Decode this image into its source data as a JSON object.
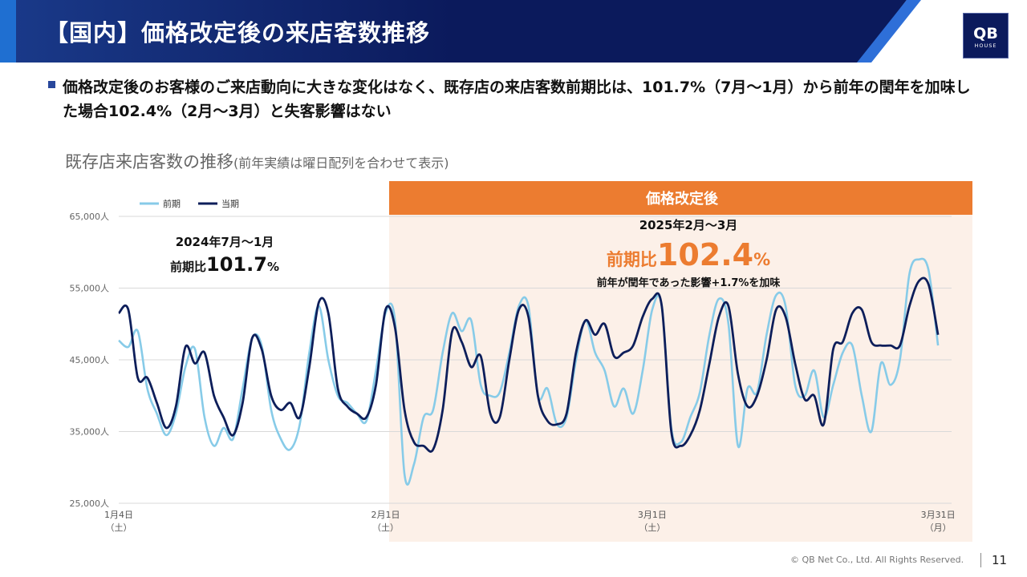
{
  "header": {
    "title": "【国内】価格改定後の来店客数推移",
    "logo_top": "QB",
    "logo_bottom": "HOUSE"
  },
  "summary": "価格改定後のお客様のご来店動向に大きな変化はなく、既存店の来店客数前期比は、101.7%（7月～1月）から前年の閏年を加味した場合102.4%（2月～3月）と失客影響はない",
  "chart_heading": {
    "main": "既存店来店客数の推移",
    "note": "(前年実績は曜日配列を合わせて表示)"
  },
  "chart_data": {
    "type": "line",
    "legend": [
      "前期",
      "当期"
    ],
    "legend_position": "top-left",
    "ylim": [
      25000,
      65000
    ],
    "ytick_values": [
      25000,
      35000,
      45000,
      55000,
      65000
    ],
    "ytick_labels": [
      "25,000人",
      "35,000人",
      "45,000人",
      "55,000人",
      "65,000人"
    ],
    "x_days": [
      0,
      87
    ],
    "xticks": [
      {
        "day": 0,
        "label": "1月4日",
        "sub": "（土）"
      },
      {
        "day": 28,
        "label": "2月1日",
        "sub": "（土）"
      },
      {
        "day": 56,
        "label": "3月1日",
        "sub": "（土）"
      },
      {
        "day": 86,
        "label": "3月31日",
        "sub": "（月）"
      }
    ],
    "shaded_from_day": 28,
    "series": [
      {
        "name": "前期",
        "color": "#87cbe8",
        "points": [
          [
            0,
            47700
          ],
          [
            1,
            46800
          ],
          [
            2,
            49000
          ],
          [
            3,
            41000
          ],
          [
            4,
            37500
          ],
          [
            5,
            34500
          ],
          [
            6,
            37500
          ],
          [
            7,
            44000
          ],
          [
            8,
            46500
          ],
          [
            9,
            37000
          ],
          [
            10,
            33000
          ],
          [
            11,
            35500
          ],
          [
            12,
            34000
          ],
          [
            13,
            41000
          ],
          [
            14,
            48000
          ],
          [
            15,
            47000
          ],
          [
            16,
            38000
          ],
          [
            17,
            34000
          ],
          [
            18,
            32500
          ],
          [
            19,
            36000
          ],
          [
            20,
            46000
          ],
          [
            21,
            52500
          ],
          [
            22,
            45000
          ],
          [
            23,
            40000
          ],
          [
            24,
            39000
          ],
          [
            25,
            37500
          ],
          [
            26,
            36500
          ],
          [
            27,
            43500
          ],
          [
            28,
            51500
          ],
          [
            29,
            50500
          ],
          [
            30,
            29000
          ],
          [
            31,
            30500
          ],
          [
            32,
            37000
          ],
          [
            33,
            38000
          ],
          [
            34,
            46000
          ],
          [
            35,
            51500
          ],
          [
            36,
            49000
          ],
          [
            37,
            50500
          ],
          [
            38,
            41500
          ],
          [
            39,
            40000
          ],
          [
            40,
            40500
          ],
          [
            41,
            46000
          ],
          [
            42,
            52500
          ],
          [
            43,
            52500
          ],
          [
            44,
            40000
          ],
          [
            45,
            41000
          ],
          [
            46,
            36000
          ],
          [
            47,
            37000
          ],
          [
            48,
            45000
          ],
          [
            49,
            50500
          ],
          [
            50,
            46000
          ],
          [
            51,
            43500
          ],
          [
            52,
            38500
          ],
          [
            53,
            41000
          ],
          [
            54,
            37500
          ],
          [
            55,
            43500
          ],
          [
            56,
            52000
          ],
          [
            57,
            52500
          ],
          [
            58,
            35500
          ],
          [
            59,
            33500
          ],
          [
            60,
            37000
          ],
          [
            61,
            40500
          ],
          [
            62,
            48500
          ],
          [
            63,
            53500
          ],
          [
            64,
            50000
          ],
          [
            65,
            33000
          ],
          [
            66,
            41000
          ],
          [
            67,
            40500
          ],
          [
            68,
            48500
          ],
          [
            69,
            54000
          ],
          [
            70,
            52500
          ],
          [
            71,
            41500
          ],
          [
            72,
            40000
          ],
          [
            73,
            43500
          ],
          [
            74,
            37000
          ],
          [
            75,
            41500
          ],
          [
            76,
            46000
          ],
          [
            77,
            47000
          ],
          [
            78,
            40000
          ],
          [
            79,
            35000
          ],
          [
            80,
            44500
          ],
          [
            81,
            41500
          ],
          [
            82,
            45000
          ],
          [
            83,
            57000
          ],
          [
            84,
            59000
          ],
          [
            85,
            57500
          ],
          [
            86,
            47000
          ]
        ]
      },
      {
        "name": "当期",
        "color": "#0d1e5a",
        "points": [
          [
            0,
            51500
          ],
          [
            1,
            52000
          ],
          [
            2,
            42500
          ],
          [
            3,
            42500
          ],
          [
            4,
            39000
          ],
          [
            5,
            35500
          ],
          [
            6,
            38500
          ],
          [
            7,
            46800
          ],
          [
            8,
            44500
          ],
          [
            9,
            46000
          ],
          [
            10,
            40000
          ],
          [
            11,
            37000
          ],
          [
            12,
            34500
          ],
          [
            13,
            39000
          ],
          [
            14,
            48000
          ],
          [
            15,
            46500
          ],
          [
            16,
            40000
          ],
          [
            17,
            38000
          ],
          [
            18,
            39000
          ],
          [
            19,
            37000
          ],
          [
            20,
            44000
          ],
          [
            21,
            53000
          ],
          [
            22,
            51500
          ],
          [
            23,
            41000
          ],
          [
            24,
            38500
          ],
          [
            25,
            37500
          ],
          [
            26,
            37000
          ],
          [
            27,
            41500
          ],
          [
            28,
            52000
          ],
          [
            29,
            49500
          ],
          [
            30,
            38000
          ],
          [
            31,
            33500
          ],
          [
            32,
            33000
          ],
          [
            33,
            32500
          ],
          [
            34,
            38000
          ],
          [
            35,
            49000
          ],
          [
            36,
            47500
          ],
          [
            37,
            44000
          ],
          [
            38,
            45500
          ],
          [
            39,
            37500
          ],
          [
            40,
            37000
          ],
          [
            41,
            45000
          ],
          [
            42,
            52000
          ],
          [
            43,
            51000
          ],
          [
            44,
            40000
          ],
          [
            45,
            36500
          ],
          [
            46,
            36000
          ],
          [
            47,
            37500
          ],
          [
            48,
            46000
          ],
          [
            49,
            50500
          ],
          [
            50,
            48500
          ],
          [
            51,
            50000
          ],
          [
            52,
            45500
          ],
          [
            53,
            46000
          ],
          [
            54,
            47000
          ],
          [
            55,
            51000
          ],
          [
            56,
            53500
          ],
          [
            57,
            52500
          ],
          [
            58,
            35000
          ],
          [
            59,
            33000
          ],
          [
            60,
            34500
          ],
          [
            61,
            38000
          ],
          [
            62,
            44500
          ],
          [
            63,
            51000
          ],
          [
            64,
            52500
          ],
          [
            65,
            43000
          ],
          [
            66,
            38500
          ],
          [
            67,
            40000
          ],
          [
            68,
            45000
          ],
          [
            69,
            52000
          ],
          [
            70,
            51000
          ],
          [
            71,
            44500
          ],
          [
            72,
            39500
          ],
          [
            73,
            40000
          ],
          [
            74,
            36000
          ],
          [
            75,
            46500
          ],
          [
            76,
            47500
          ],
          [
            77,
            51500
          ],
          [
            78,
            52000
          ],
          [
            79,
            47500
          ],
          [
            80,
            47000
          ],
          [
            81,
            47000
          ],
          [
            82,
            47000
          ],
          [
            83,
            52500
          ],
          [
            84,
            56000
          ],
          [
            85,
            55500
          ],
          [
            86,
            48500
          ]
        ]
      }
    ],
    "annotations": {
      "before_period": "2024年7月～1月",
      "before_ratio_prefix": "前期比",
      "before_ratio_value": "101.7",
      "before_ratio_unit": "%",
      "after_banner": "価格改定後",
      "after_period": "2025年2月～3月",
      "after_ratio_prefix": "前期比",
      "after_ratio_value": "102.4",
      "after_ratio_unit": "%",
      "after_note": "前年が閏年であった影響+1.7%を加味"
    }
  },
  "colors": {
    "header_navy": "#0b1a5c",
    "header_accent": "#1f6fd1",
    "orange": "#ec7c30",
    "shade": "#fcf0e8",
    "prev_line": "#87cbe8",
    "curr_line": "#0d1e5a"
  },
  "footer": {
    "copyright": "© QB Net Co., Ltd. All Rights Reserved.",
    "page": "11"
  }
}
